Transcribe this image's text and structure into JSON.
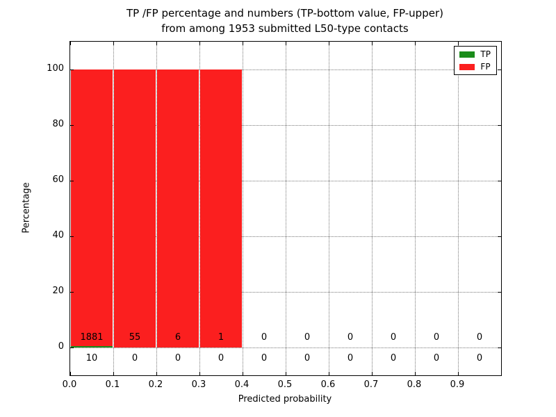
{
  "figure": {
    "background": "#ffffff",
    "title_lines": [
      "TP /FP percentage and numbers (TP-bottom value, FP-upper)",
      "from among 1953 submitted L50-type contacts"
    ]
  },
  "chart_data": {
    "type": "bar",
    "stacked": true,
    "title": "TP /FP percentage and numbers (TP-bottom value, FP-upper) from among 1953 submitted L50-type contacts",
    "xlabel": "Predicted probability",
    "ylabel": "Percentage",
    "xlim": [
      0.0,
      1.0
    ],
    "ylim": [
      -10,
      110
    ],
    "xticks": [
      0.0,
      0.1,
      0.2,
      0.3,
      0.4,
      0.5,
      0.6,
      0.7,
      0.8,
      0.9
    ],
    "xtick_labels": [
      "0.0",
      "0.1",
      "0.2",
      "0.3",
      "0.4",
      "0.5",
      "0.6",
      "0.7",
      "0.8",
      "0.9"
    ],
    "yticks": [
      0,
      20,
      40,
      60,
      80,
      100
    ],
    "ytick_labels": [
      "0",
      "20",
      "40",
      "60",
      "80",
      "100"
    ],
    "grid": "dotted",
    "total_contacts": 1953,
    "bin_edges": [
      0.0,
      0.1,
      0.2,
      0.3,
      0.4,
      0.5,
      0.6,
      0.7,
      0.8,
      0.9,
      1.0
    ],
    "bin_centers": [
      0.05,
      0.15,
      0.25,
      0.35,
      0.45,
      0.55,
      0.65,
      0.75,
      0.85,
      0.95
    ],
    "series": [
      {
        "name": "TP",
        "color": "#1a8c1a",
        "counts": [
          10,
          0,
          0,
          0,
          0,
          0,
          0,
          0,
          0,
          0
        ],
        "percent": [
          0.53,
          0,
          0,
          0,
          0,
          0,
          0,
          0,
          0,
          0
        ]
      },
      {
        "name": "FP",
        "color": "#fb1f1f",
        "counts": [
          1881,
          55,
          6,
          1,
          0,
          0,
          0,
          0,
          0,
          0
        ],
        "percent": [
          99.47,
          100,
          100,
          100,
          0,
          0,
          0,
          0,
          0,
          0
        ]
      }
    ],
    "annotation_rows": {
      "fp_counts_y": 3.5,
      "tp_counts_y": -4.0
    },
    "legend": {
      "position": "upper right",
      "entries": [
        {
          "label": "TP",
          "color": "#1a8c1a"
        },
        {
          "label": "FP",
          "color": "#fb1f1f"
        }
      ]
    }
  }
}
